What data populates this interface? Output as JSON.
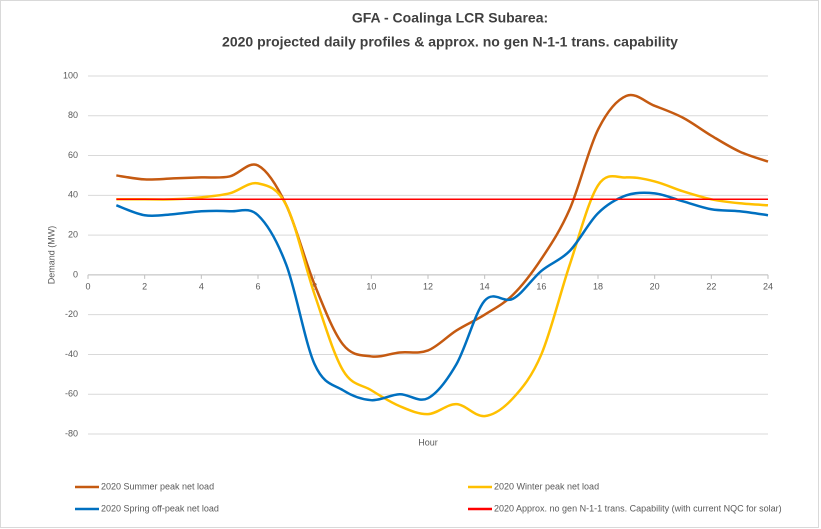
{
  "chart_data": {
    "type": "line",
    "title": "GFA - Coalinga LCR Subarea:",
    "subtitle": "2020 projected daily profiles & approx. no  gen N-1-1 trans. capability",
    "x_label": "Hour",
    "y_label": "Demand (MW)",
    "x": [
      1,
      2,
      3,
      4,
      5,
      6,
      7,
      8,
      9,
      10,
      11,
      12,
      13,
      14,
      15,
      16,
      17,
      18,
      19,
      20,
      21,
      22,
      23,
      24
    ],
    "series": [
      {
        "name": "2020 Summer peak net load",
        "color": "#c55a11",
        "values": [
          50,
          48,
          48.5,
          49,
          49.5,
          55,
          35,
          -5,
          -35,
          -41,
          -39,
          -38,
          -28,
          -20,
          -10,
          8,
          33,
          73,
          90,
          85,
          79,
          70,
          62,
          57
        ]
      },
      {
        "name": "2020 Winter peak net load",
        "color": "#ffc000",
        "values": [
          38,
          38,
          38,
          39,
          41,
          46,
          35,
          -10,
          -48,
          -58,
          -66,
          -70,
          -65,
          -71,
          -62,
          -40,
          5,
          45,
          49,
          47,
          42,
          38,
          36,
          35
        ]
      },
      {
        "name": "2020 Spring off-peak net load",
        "color": "#0070c0",
        "values": [
          35,
          30,
          30.5,
          32,
          32,
          30,
          5,
          -45,
          -58,
          -63,
          -60,
          -62,
          -45,
          -13,
          -12,
          2,
          12,
          31,
          40,
          41,
          37,
          33,
          32,
          30
        ]
      },
      {
        "name": "2020 Approx. no gen N-1-1 trans. Capability (with current NQC for solar)",
        "color": "#ff0000",
        "values": [
          38,
          38,
          38,
          38,
          38,
          38,
          38,
          38,
          38,
          38,
          38,
          38,
          38,
          38,
          38,
          38,
          38,
          38,
          38,
          38,
          38,
          38,
          38,
          38
        ]
      }
    ],
    "xlim": [
      0,
      24
    ],
    "xticks": [
      0,
      2,
      4,
      6,
      8,
      10,
      12,
      14,
      16,
      18,
      20,
      22,
      24
    ],
    "ylim": [
      -80,
      100
    ],
    "yticks": [
      -80,
      -60,
      -40,
      -20,
      0,
      20,
      40,
      60,
      80,
      100
    ],
    "grid": true,
    "legend": "bottom"
  }
}
